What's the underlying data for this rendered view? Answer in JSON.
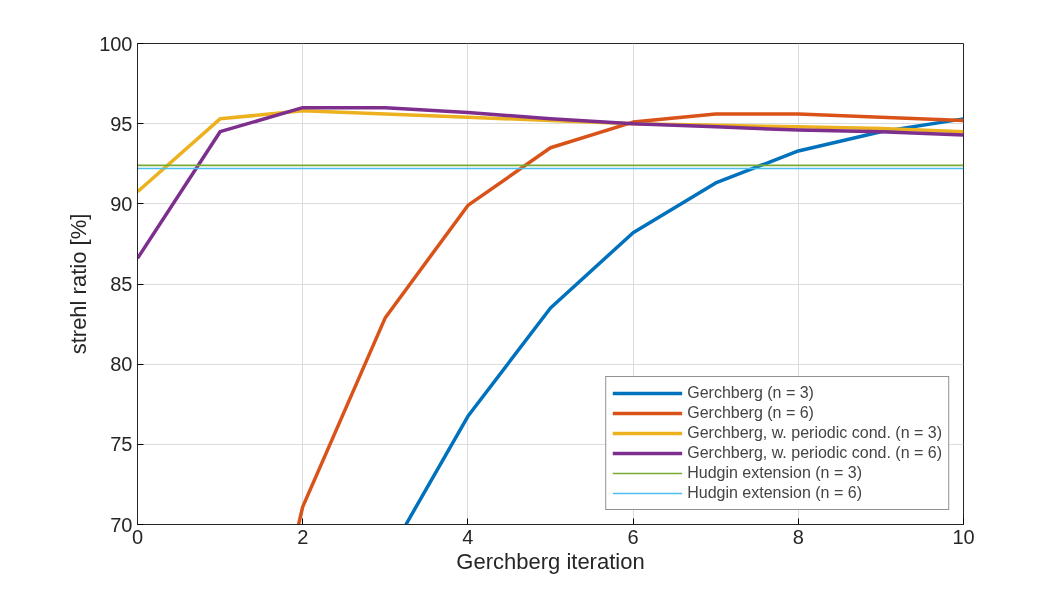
{
  "chart_data": {
    "type": "line",
    "xlabel": "Gerchberg iteration",
    "ylabel": "strehl ratio [%]",
    "xlim": [
      0,
      10
    ],
    "ylim": [
      70,
      100
    ],
    "xticks": [
      0,
      2,
      4,
      6,
      8,
      10
    ],
    "yticks": [
      70,
      75,
      80,
      85,
      90,
      95,
      100
    ],
    "grid": true,
    "legend": "bottom right",
    "line_style": "solid",
    "marker": "none",
    "series": [
      {
        "name": "Gerchberg (n = 3)",
        "color": "#0072bd",
        "x": [
          3.25,
          4,
          5,
          6,
          7,
          8,
          9,
          10
        ],
        "values": [
          70,
          76.75,
          83.5,
          88.2,
          91.3,
          93.3,
          94.5,
          95.3
        ]
      },
      {
        "name": "Gerchberg (n = 6)",
        "color": "#d95319",
        "x": [
          1.95,
          2,
          3,
          4,
          5,
          6,
          7,
          8,
          9,
          10
        ],
        "values": [
          70,
          71.1,
          82.9,
          89.9,
          93.5,
          95.1,
          95.6,
          95.6,
          95.4,
          95.2
        ]
      },
      {
        "name": "Gerchberg, w. periodic cond. (n = 3)",
        "color": "#edb120",
        "x": [
          0,
          1,
          2,
          3,
          4,
          5,
          6,
          7,
          8,
          9,
          10
        ],
        "values": [
          90.75,
          95.3,
          95.8,
          95.6,
          95.4,
          95.2,
          95.0,
          94.9,
          94.8,
          94.7,
          94.5
        ]
      },
      {
        "name": "Gerchberg, w. periodic cond. (n = 6)",
        "color": "#7e2f8e",
        "x": [
          0,
          1,
          2,
          3,
          4,
          5,
          6,
          7,
          8,
          9,
          10
        ],
        "values": [
          86.6,
          94.5,
          96.0,
          96.0,
          95.7,
          95.3,
          95.0,
          94.8,
          94.6,
          94.5,
          94.3
        ]
      },
      {
        "name": "Hudgin extension (n = 3)",
        "color": "#77ac30",
        "x": [
          0,
          10
        ],
        "values": [
          92.4,
          92.4
        ]
      },
      {
        "name": "Hudgin extension (n = 6)",
        "color": "#4dbeee",
        "x": [
          0,
          10
        ],
        "values": [
          92.2,
          92.2
        ]
      }
    ]
  }
}
